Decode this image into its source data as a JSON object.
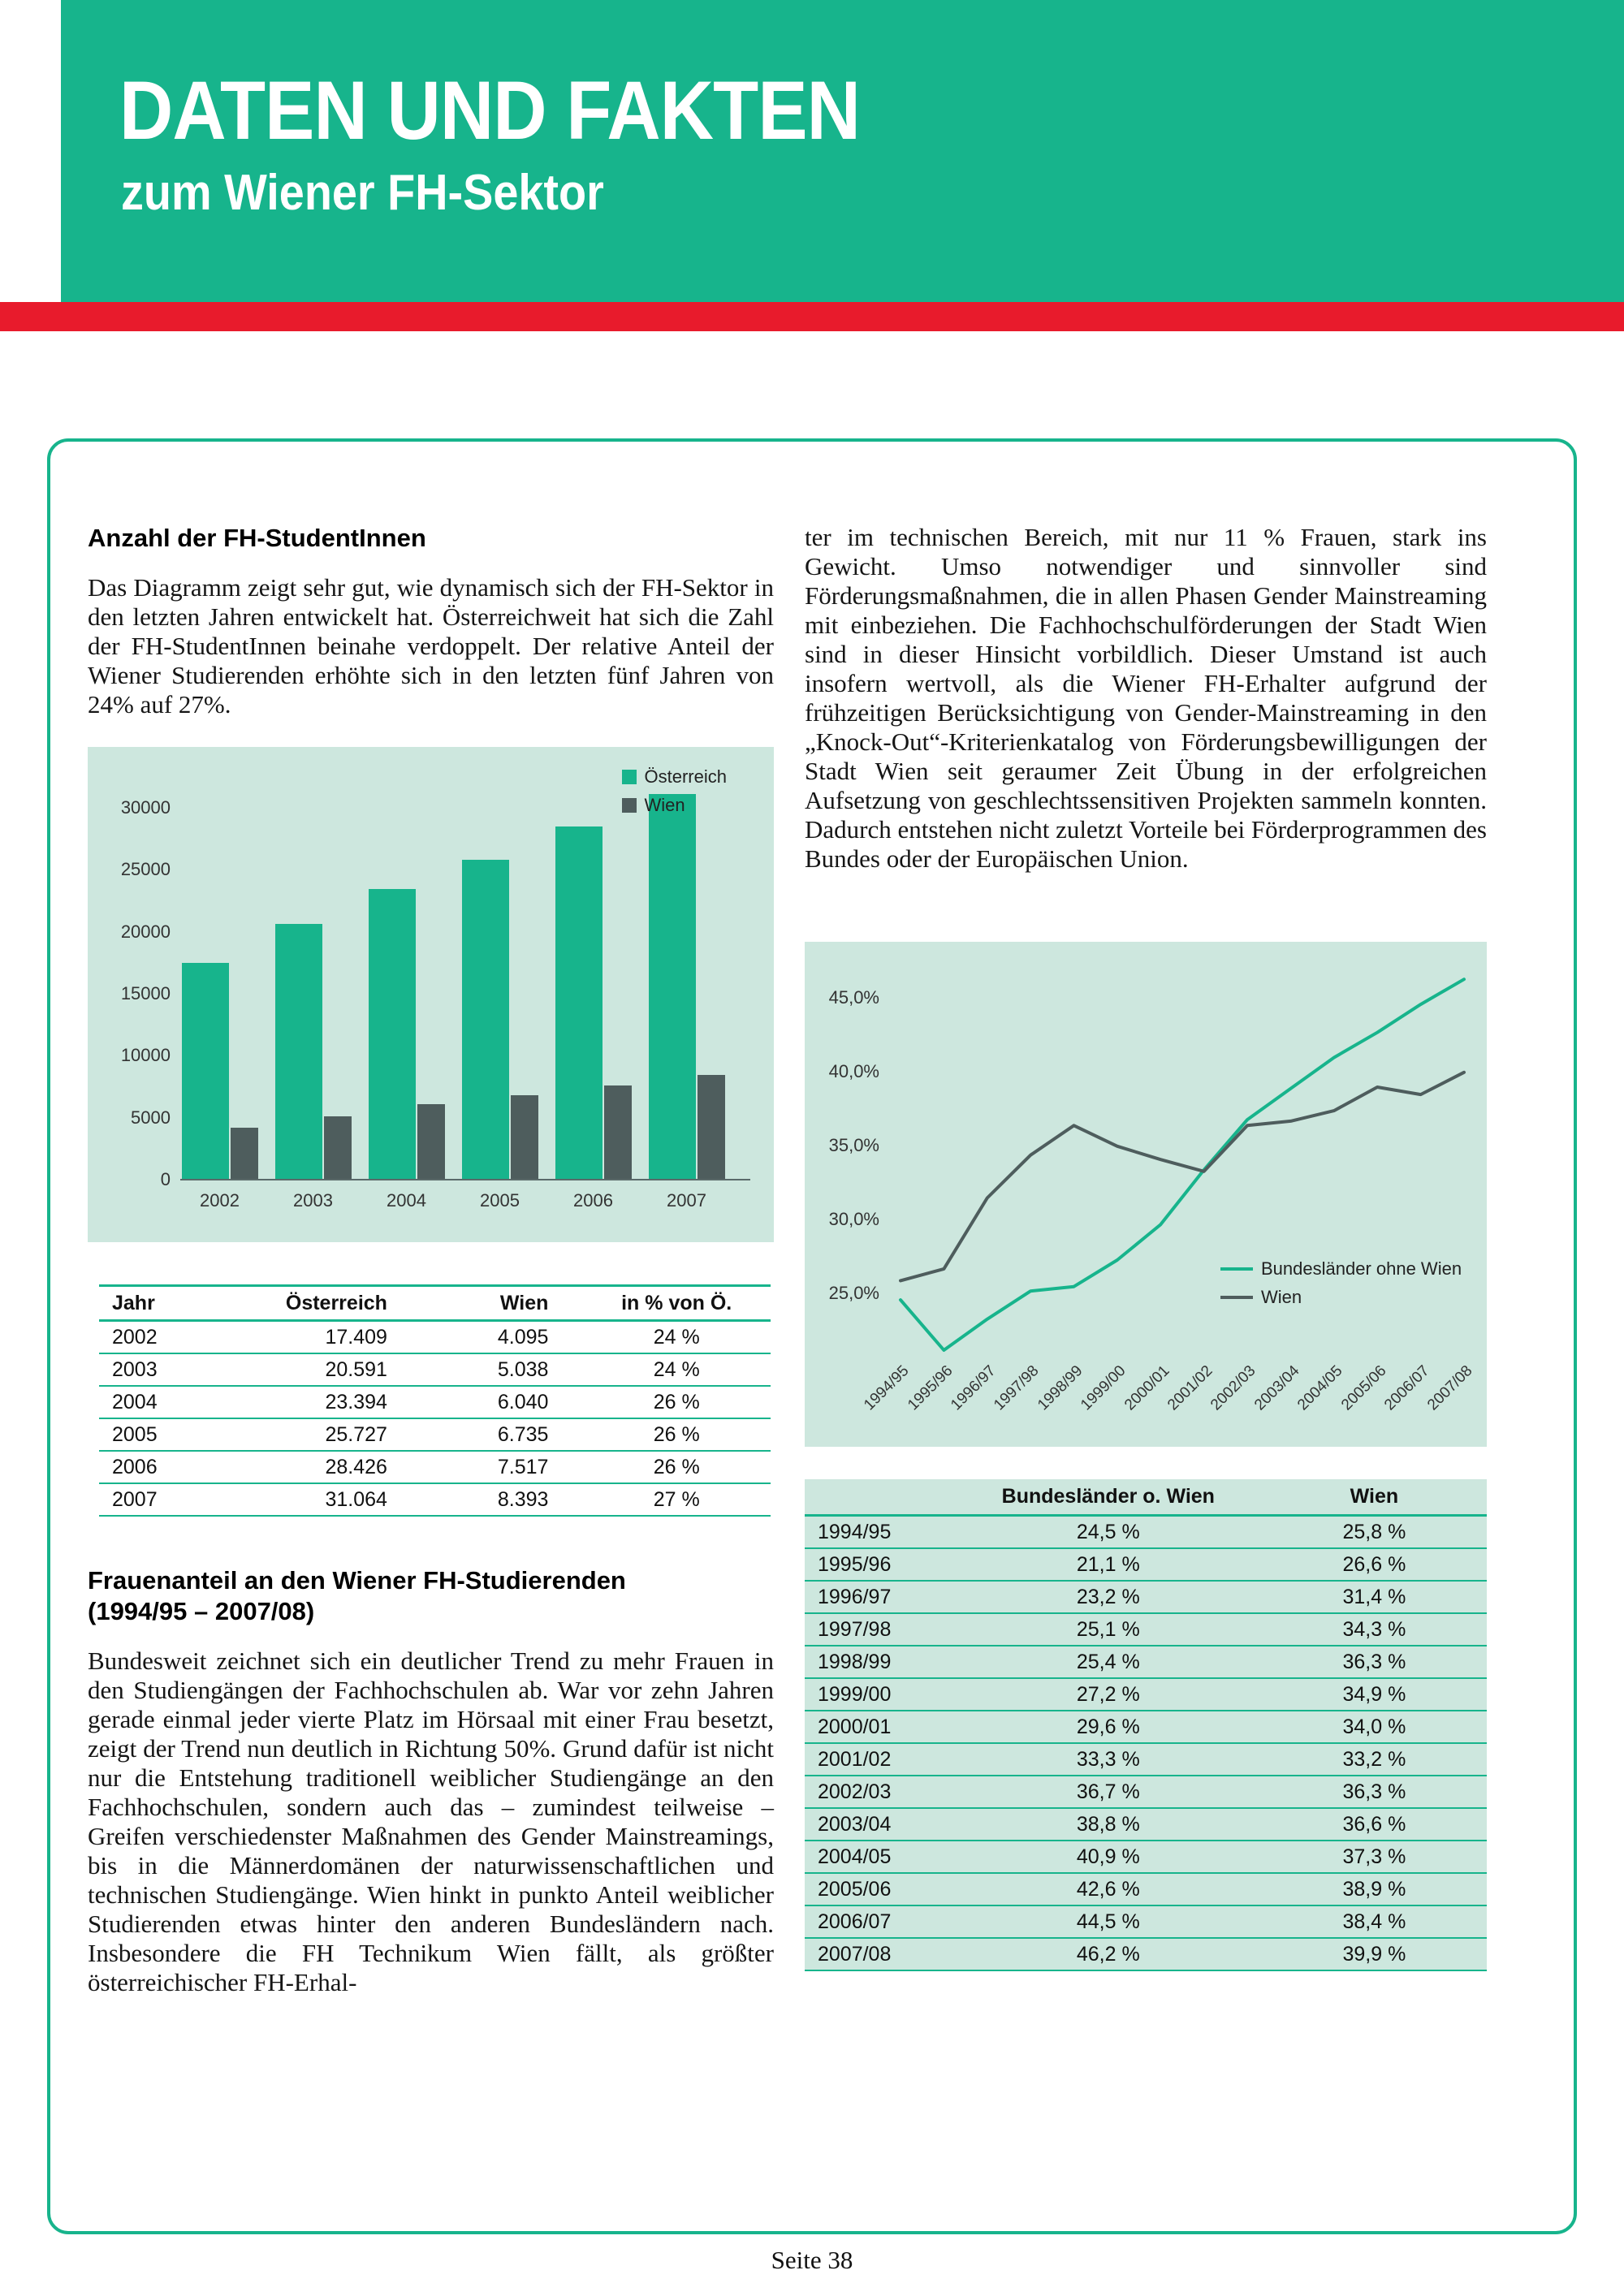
{
  "header": {
    "title_line1": "DATEN UND FAKTEN",
    "title_line2": "zum Wiener FH-Sektor"
  },
  "colors": {
    "teal": "#17b48c",
    "red": "#e81b2c",
    "panel_mint": "#cde7de",
    "dark_slate": "#4e5d5d"
  },
  "left_column": {
    "heading1": "Anzahl der FH-StudentInnen",
    "para1": "Das Diagramm zeigt sehr gut, wie dynamisch sich der FH-Sektor in den letzten Jahren entwickelt hat. Österreichweit hat sich die Zahl der FH-StudentInnen beinahe verdoppelt. Der relative Anteil der Wiener Studierenden erhöhte sich in den letzten fünf Jahren von 24% auf 27%.",
    "heading2_line1": "Frauenanteil an den Wiener FH-Studierenden",
    "heading2_line2": "(1994/95 – 2007/08)",
    "para2": "Bundesweit zeichnet sich ein deutlicher Trend zu mehr Frauen in den Studiengängen der Fachhochschulen ab. War vor zehn Jahren gerade einmal jeder vierte Platz im Hörsaal mit einer Frau besetzt, zeigt der Trend nun deutlich in Richtung 50%. Grund dafür ist nicht nur die Entstehung traditionell weiblicher Studiengänge an den Fachhochschulen, sondern auch das – zumindest teilweise – Greifen verschiedenster Maßnahmen des Gender Mainstreamings, bis in die Männerdomänen der naturwissenschaftlichen und technischen Studiengänge. Wien hinkt in punkto Anteil weiblicher Studierenden etwas hinter den anderen Bundesländern nach. Insbesondere die FH Technikum Wien fällt, als größter österreichischer FH-Erhal-"
  },
  "right_column": {
    "para1": "ter im technischen Bereich, mit nur 11 % Frauen, stark ins Gewicht. Umso notwendiger und sinnvoller sind Förderungsmaßnahmen, die in allen Phasen Gender Mainstreaming mit einbeziehen. Die Fachhochschulförderungen der Stadt Wien sind in dieser Hinsicht vorbildlich. Dieser Umstand ist auch insofern wertvoll, als die Wiener FH-Erhalter aufgrund der frühzeitigen Berücksichtigung von Gender-Mainstreaming in den „Knock-Out“-Kriterienkatalog von Förderungsbewilligungen der Stadt Wien seit geraumer Zeit Übung in der erfolgreichen Aufsetzung von geschlechtssensitiven Projekten sammeln konnten. Dadurch entstehen nicht zuletzt Vorteile bei Förderprogrammen des Bundes oder der Europäischen Union."
  },
  "students_table": {
    "headers": [
      "Jahr",
      "Österreich",
      "Wien",
      "in % von Ö."
    ],
    "rows": [
      [
        "2002",
        "17.409",
        "4.095",
        "24 %"
      ],
      [
        "2003",
        "20.591",
        "5.038",
        "24 %"
      ],
      [
        "2004",
        "23.394",
        "6.040",
        "26 %"
      ],
      [
        "2005",
        "25.727",
        "6.735",
        "26 %"
      ],
      [
        "2006",
        "28.426",
        "7.517",
        "26 %"
      ],
      [
        "2007",
        "31.064",
        "8.393",
        "27 %"
      ]
    ]
  },
  "women_table": {
    "headers": [
      "",
      "Bundesländer o. Wien",
      "Wien"
    ],
    "rows": [
      [
        "1994/95",
        "24,5 %",
        "25,8 %"
      ],
      [
        "1995/96",
        "21,1 %",
        "26,6 %"
      ],
      [
        "1996/97",
        "23,2 %",
        "31,4 %"
      ],
      [
        "1997/98",
        "25,1 %",
        "34,3 %"
      ],
      [
        "1998/99",
        "25,4 %",
        "36,3 %"
      ],
      [
        "1999/00",
        "27,2 %",
        "34,9 %"
      ],
      [
        "2000/01",
        "29,6 %",
        "34,0 %"
      ],
      [
        "2001/02",
        "33,3 %",
        "33,2 %"
      ],
      [
        "2002/03",
        "36,7 %",
        "36,3 %"
      ],
      [
        "2003/04",
        "38,8 %",
        "36,6 %"
      ],
      [
        "2004/05",
        "40,9 %",
        "37,3 %"
      ],
      [
        "2005/06",
        "42,6 %",
        "38,9 %"
      ],
      [
        "2006/07",
        "44,5 %",
        "38,4 %"
      ],
      [
        "2007/08",
        "46,2 %",
        "39,9 %"
      ]
    ]
  },
  "chart_data": [
    {
      "type": "bar",
      "title": "Anzahl der FH-StudentInnen",
      "categories": [
        "2002",
        "2003",
        "2004",
        "2005",
        "2006",
        "2007"
      ],
      "series": [
        {
          "name": "Österreich",
          "color": "#17b48c",
          "values": [
            17409,
            20591,
            23394,
            25727,
            28426,
            31064
          ]
        },
        {
          "name": "Wien",
          "color": "#4e5d5d",
          "values": [
            4095,
            5038,
            6040,
            6735,
            7517,
            8393
          ]
        }
      ],
      "ylim": [
        0,
        30000
      ],
      "yticks": [
        0,
        5000,
        10000,
        15000,
        20000,
        25000,
        30000
      ],
      "grid": false,
      "legend_position": "top-right"
    },
    {
      "type": "line",
      "title": "Frauenanteil an den Wiener FH-Studierenden (1994/95 – 2007/08)",
      "categories": [
        "1994/95",
        "1995/96",
        "1996/97",
        "1997/98",
        "1998/99",
        "1999/00",
        "2000/01",
        "2001/02",
        "2002/03",
        "2003/04",
        "2004/05",
        "2005/06",
        "2006/07",
        "2007/08"
      ],
      "series": [
        {
          "name": "Bundesländer ohne Wien",
          "color": "#17b48c",
          "values": [
            24.5,
            21.1,
            23.2,
            25.1,
            25.4,
            27.2,
            29.6,
            33.3,
            36.7,
            38.8,
            40.9,
            42.6,
            44.5,
            46.2
          ]
        },
        {
          "name": "Wien",
          "color": "#4e5d5d",
          "values": [
            25.8,
            26.6,
            31.4,
            34.3,
            36.3,
            34.9,
            34.0,
            33.2,
            36.3,
            36.6,
            37.3,
            38.9,
            38.4,
            39.9
          ]
        }
      ],
      "ytick_values": [
        45,
        40,
        35,
        30,
        25
      ],
      "ytick_labels": [
        "45,0%",
        "40,0%",
        "35,0%",
        "30,0%",
        "25,0%"
      ],
      "ylim": [
        20,
        47
      ],
      "grid": false,
      "legend_position": "right-middle"
    }
  ],
  "footer": {
    "page_label": "Seite 38"
  }
}
